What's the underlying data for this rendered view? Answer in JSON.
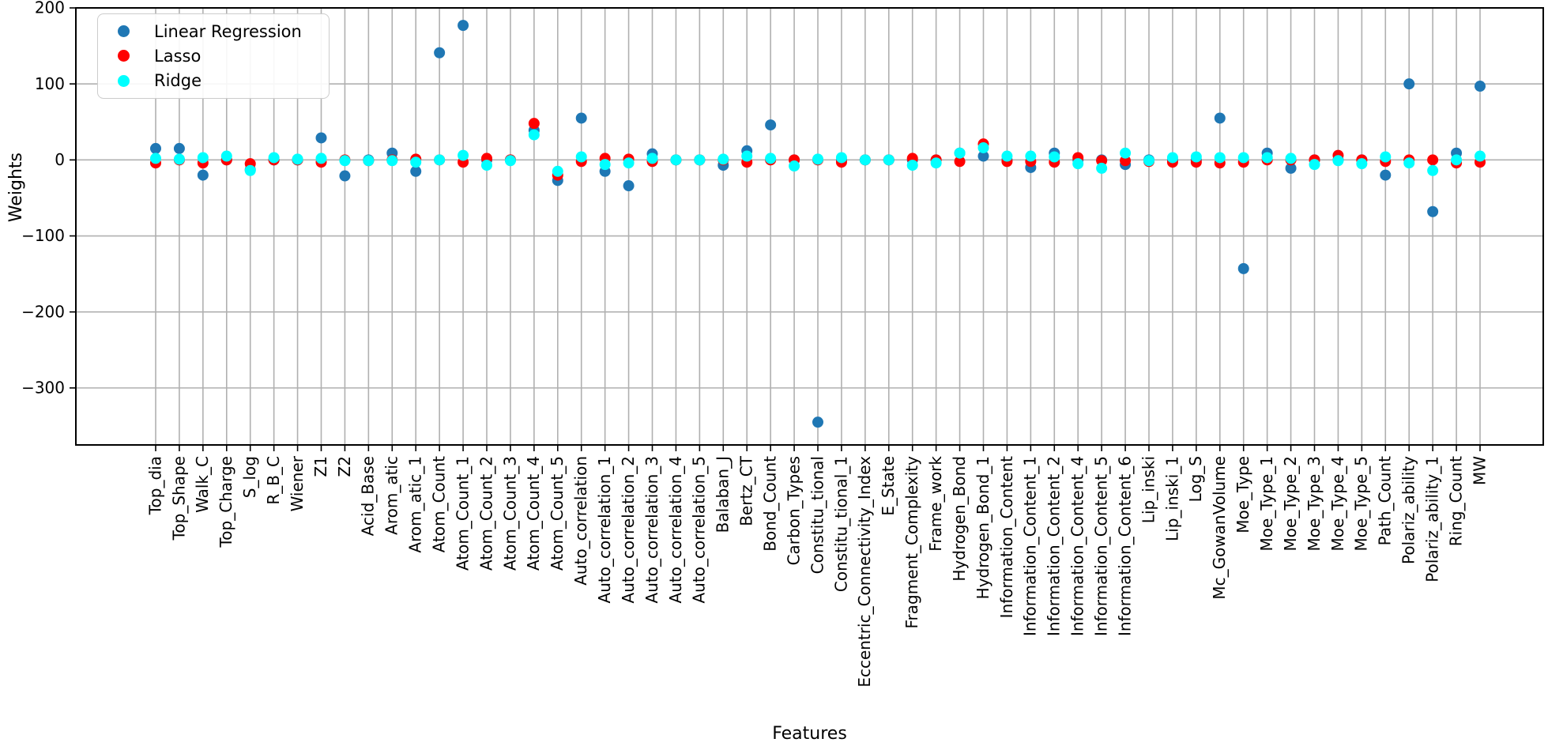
{
  "figure": {
    "background": "#ffffff",
    "grid_color": "#b0b0b0",
    "spine_color": "#000000"
  },
  "legend": {
    "position": "upper left",
    "items": [
      {
        "label": "Linear Regression",
        "color": "#1f77b4"
      },
      {
        "label": "Lasso",
        "color": "#ff0000"
      },
      {
        "label": "Ridge",
        "color": "#00ffff"
      }
    ]
  },
  "chart_data": {
    "type": "scatter",
    "title": "",
    "xlabel": "Features",
    "ylabel": "Weights",
    "ylim": [
      -375,
      200
    ],
    "yticks": [
      200,
      100,
      0,
      -100,
      -200,
      -300
    ],
    "grid": true,
    "legend_position": "upper left",
    "categories": [
      "Top_dia",
      "Top_Shape",
      "Walk_C",
      "Top_Charge",
      "S_log",
      "R_B_C",
      "Wiener",
      "Z1",
      "Z2",
      "Acid_Base",
      "Arom_atic",
      "Arom_atic_1",
      "Atom_Count",
      "Atom_Count_1",
      "Atom_Count_2",
      "Atom_Count_3",
      "Atom_Count_4",
      "Atom_Count_5",
      "Auto_correlation",
      "Auto_correlation_1",
      "Auto_correlation_2",
      "Auto_correlation_3",
      "Auto_correlation_4",
      "Auto_correlation_5",
      "Balaban_J",
      "Bertz_CT",
      "Bond_Count",
      "Carbon_Types",
      "Constitu_tional",
      "Constitu_tional_1",
      "Eccentric_Connectivity_Index",
      "E_State",
      "Fragment_Complexity",
      "Frame_work",
      "Hydrogen_Bond",
      "Hydrogen_Bond_1",
      "Information_Content",
      "Information_Content_1",
      "Information_Content_2",
      "Information_Content_4",
      "Information_Content_5",
      "Information_Content_6",
      "Lip_inski",
      "Lip_inski_1",
      "Log_S",
      "Mc_GowanVolume",
      "Moe_Type",
      "Moe_Type_1",
      "Moe_Type_2",
      "Moe_Type_3",
      "Moe_Type_4",
      "Moe_Type_5",
      "Path_Count",
      "Polariz_ability",
      "Polariz_ability_1",
      "Ring_Count",
      "MW"
    ],
    "series": [
      {
        "name": "Linear Regression",
        "color": "#1f77b4",
        "values": [
          15,
          15,
          -20,
          0,
          -13,
          0,
          0,
          29,
          -21,
          0,
          9,
          -15,
          141,
          177,
          0,
          0,
          39,
          -27,
          55,
          -15,
          -34,
          8,
          0,
          0,
          -7,
          12,
          46,
          0,
          -345,
          0,
          0,
          0,
          0,
          0,
          9,
          5,
          0,
          -10,
          9,
          0,
          0,
          -6,
          0,
          0,
          0,
          55,
          -143,
          9,
          -11,
          0,
          0,
          0,
          -20,
          100,
          -68,
          9,
          97
        ]
      },
      {
        "name": "Lasso",
        "color": "#ff0000",
        "values": [
          -4,
          0,
          -4,
          0,
          -5,
          0,
          0,
          -3,
          0,
          -1,
          0,
          1,
          0,
          -3,
          2,
          0,
          48,
          -20,
          -2,
          2,
          1,
          -2,
          0,
          0,
          0,
          -3,
          0,
          0,
          0,
          -3,
          0,
          0,
          2,
          0,
          -2,
          21,
          -2,
          -2,
          -3,
          3,
          -1,
          -1,
          -2,
          -3,
          -3,
          -4,
          -3,
          0,
          0,
          0,
          6,
          0,
          -2,
          0,
          0,
          -4,
          -3
        ]
      },
      {
        "name": "Ridge",
        "color": "#00ffff",
        "values": [
          2,
          1,
          3,
          5,
          -14,
          3,
          1,
          2,
          -1,
          -1,
          -1,
          -3,
          0,
          6,
          -7,
          -1,
          33,
          -15,
          4,
          -6,
          -4,
          2,
          0,
          0,
          1,
          5,
          2,
          -8,
          1,
          3,
          0,
          0,
          -7,
          -4,
          9,
          16,
          5,
          5,
          4,
          -5,
          -11,
          9,
          -1,
          3,
          4,
          3,
          3,
          3,
          2,
          -6,
          -1,
          -5,
          4,
          -4,
          -14,
          0,
          5
        ]
      }
    ]
  }
}
